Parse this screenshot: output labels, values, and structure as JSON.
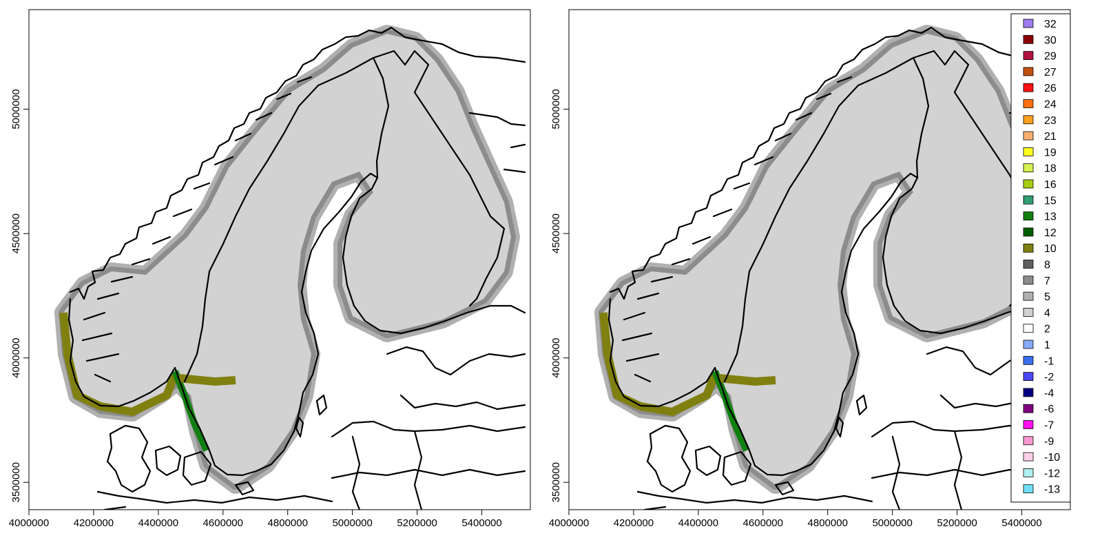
{
  "maps": [
    {
      "id": "left",
      "x_ticks": [
        "4000000",
        "4200000",
        "4400000",
        "4600000",
        "4800000",
        "5000000",
        "5200000",
        "5400000"
      ],
      "y_ticks": [
        "3500000",
        "4000000",
        "4500000",
        "5000000"
      ]
    },
    {
      "id": "right",
      "x_ticks": [
        "4000000",
        "4200000",
        "4400000",
        "4600000",
        "4800000",
        "5000000",
        "5200000",
        "5400000"
      ],
      "y_ticks": [
        "3500000",
        "4000000",
        "4500000",
        "5000000"
      ]
    }
  ],
  "legend": [
    {
      "label": "32",
      "color": "#a07af0"
    },
    {
      "label": "30",
      "color": "#8b0000"
    },
    {
      "label": "29",
      "color": "#b01040"
    },
    {
      "label": "27",
      "color": "#c05010"
    },
    {
      "label": "26",
      "color": "#ff1010"
    },
    {
      "label": "24",
      "color": "#ff7010"
    },
    {
      "label": "23",
      "color": "#ffa020"
    },
    {
      "label": "21",
      "color": "#f8b070"
    },
    {
      "label": "19",
      "color": "#ffff20"
    },
    {
      "label": "18",
      "color": "#d8f050"
    },
    {
      "label": "16",
      "color": "#a8d010"
    },
    {
      "label": "15",
      "color": "#30a070"
    },
    {
      "label": "13",
      "color": "#108010"
    },
    {
      "label": "12",
      "color": "#006000"
    },
    {
      "label": "10",
      "color": "#808010"
    },
    {
      "label": "8",
      "color": "#606060"
    },
    {
      "label": "7",
      "color": "#8c8c8c"
    },
    {
      "label": "5",
      "color": "#b0b0b0"
    },
    {
      "label": "4",
      "color": "#d2d2d2"
    },
    {
      "label": "2",
      "color": "#ffffff"
    },
    {
      "label": "1",
      "color": "#88aaf8"
    },
    {
      "label": "-1",
      "color": "#3a70f0"
    },
    {
      "label": "-2",
      "color": "#4848f8"
    },
    {
      "label": "-4",
      "color": "#000080"
    },
    {
      "label": "-6",
      "color": "#800080"
    },
    {
      "label": "-7",
      "color": "#ff10f0"
    },
    {
      "label": "-9",
      "color": "#f898d0"
    },
    {
      "label": "-10",
      "color": "#fcd0e8"
    },
    {
      "label": "-12",
      "color": "#b0f0f0"
    },
    {
      "label": "-13",
      "color": "#70e0f8"
    }
  ]
}
